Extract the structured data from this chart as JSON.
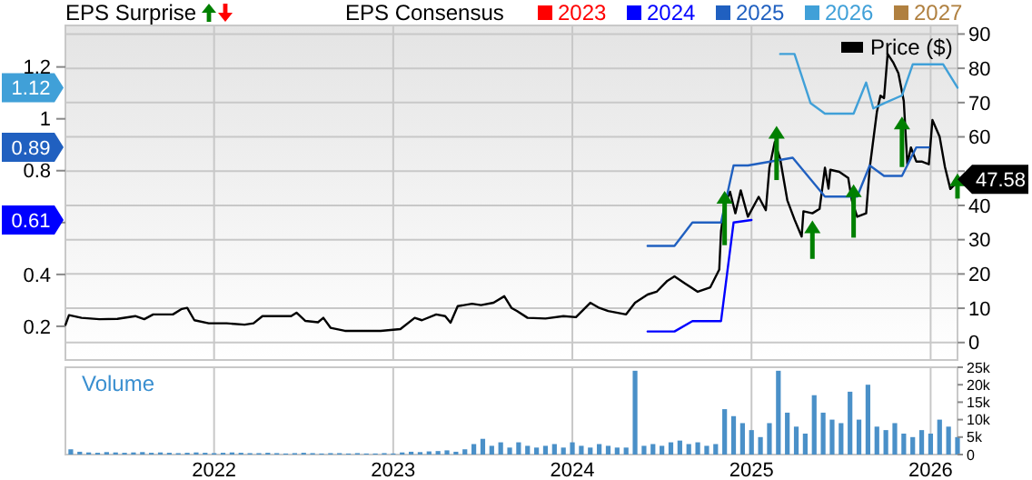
{
  "chart_data": [
    {
      "type": "line",
      "annotations": [
        "EPS Surprise"
      ],
      "legend_title": "EPS Consensus",
      "legend": "top",
      "grid": true,
      "tick_labels": "y",
      "xlim": [
        2021.17,
        2026.15
      ],
      "xticks": [
        2022,
        2023,
        2024,
        2025,
        2026
      ],
      "ylim": [
        0.07,
        1.36
      ],
      "yticks": [
        0.2,
        0.4,
        {
          "value": 0.6,
          "label": null
        },
        0.61,
        0.8,
        0.89,
        1,
        1.12,
        1.2
      ],
      "y2lim": [
        -5.1,
        92.5
      ],
      "y2ticks": [
        0,
        10,
        20,
        30,
        40,
        {
          "value": 50,
          "label": null
        },
        60,
        70,
        80,
        90
      ],
      "series": [
        {
          "name": "Price ($)",
          "type": "line",
          "axis": "y2",
          "color": "#000000",
          "x": [
            2021.17,
            2021.19,
            2021.26,
            2021.36,
            2021.46,
            2021.56,
            2021.61,
            2021.66,
            2021.77,
            2021.82,
            2021.85,
            2021.89,
            2021.97,
            2022.07,
            2022.17,
            2022.22,
            2022.27,
            2022.43,
            2022.46,
            2022.51,
            2022.58,
            2022.61,
            2022.65,
            2022.73,
            2022.93,
            2023.04,
            2023.12,
            2023.16,
            2023.24,
            2023.29,
            2023.32,
            2023.36,
            2023.44,
            2023.49,
            2023.56,
            2023.62,
            2023.66,
            2023.69,
            2023.75,
            2023.85,
            2023.95,
            2024.02,
            2024.1,
            2024.15,
            2024.2,
            2024.3,
            2024.35,
            2024.42,
            2024.47,
            2024.53,
            2024.57,
            2024.63,
            2024.7,
            2024.77,
            2024.82,
            2024.83,
            2024.85,
            2024.88,
            2024.91,
            2024.94,
            2024.98,
            2025.04,
            2025.08,
            2025.1,
            2025.13,
            2025.16,
            2025.2,
            2025.24,
            2025.28,
            2025.29,
            2025.34,
            2025.38,
            2025.41,
            2025.43,
            2025.44,
            2025.49,
            2025.54,
            2025.56,
            2025.59,
            2025.64,
            2025.66,
            2025.7,
            2025.72,
            2025.74,
            2025.76,
            2025.79,
            2025.82,
            2025.85,
            2025.87,
            2025.89,
            2025.92,
            2025.95,
            2025.99,
            2026.01,
            2026.05,
            2026.08,
            2026.11,
            2026.14,
            2026.15
          ],
          "values": [
            5.1,
            8,
            7.2,
            6.8,
            6.9,
            7.7,
            6.8,
            8.2,
            8.2,
            9.8,
            10.1,
            6.5,
            5.6,
            5.6,
            5.2,
            5.6,
            7.7,
            7.7,
            8.7,
            6.3,
            5.9,
            7.2,
            4.3,
            3.4,
            3.4,
            3.9,
            7.2,
            6.5,
            8.2,
            7.7,
            5.8,
            10.6,
            11.3,
            10.9,
            11.6,
            13.5,
            10.1,
            9.2,
            7.2,
            7,
            7.7,
            7.4,
            11.6,
            10.1,
            9.2,
            8.2,
            11.6,
            14,
            14.8,
            18,
            19.3,
            17.2,
            14.8,
            16.1,
            21.3,
            32.5,
            40,
            44,
            37.7,
            44.4,
            36.7,
            42.5,
            38.6,
            51,
            58.5,
            53.6,
            41.5,
            35.9,
            30.9,
            38.3,
            37.7,
            39,
            51,
            44.9,
            50.4,
            49.8,
            48,
            41.5,
            36.7,
            37.7,
            51,
            67.3,
            72,
            71.3,
            84.2,
            81.8,
            78.6,
            70.5,
            52,
            56.9,
            52.8,
            52.8,
            52,
            64.9,
            60.1,
            51.2,
            44.8,
            46.4,
            47.58
          ],
          "value_labels": [
            null,
            null,
            null,
            null,
            null,
            null,
            null,
            null,
            null,
            null,
            null,
            null,
            null,
            null,
            null,
            null,
            null,
            null,
            null,
            null,
            null,
            null,
            null,
            null,
            null,
            null,
            null,
            null,
            null,
            null,
            null,
            null,
            null,
            null,
            null,
            null,
            null,
            null,
            null,
            null,
            null,
            null,
            null,
            null,
            null,
            null,
            null,
            null,
            null,
            null,
            null,
            null,
            null,
            null,
            null,
            null,
            null,
            null,
            null,
            null,
            null,
            null,
            null,
            null,
            null,
            null,
            null,
            null,
            null,
            null,
            null,
            null,
            null,
            null,
            null,
            null,
            null,
            null,
            null,
            null,
            null,
            null,
            null,
            null,
            null,
            null,
            null,
            null,
            null,
            null,
            null,
            null,
            null,
            null,
            null,
            null,
            null,
            null,
            "47.58"
          ]
        },
        {
          "name": "2023",
          "type": "line",
          "color": "#ff0000"
        },
        {
          "name": "2024",
          "type": "line",
          "color": "#0000ff",
          "x": [
            2024.42,
            2024.57,
            2024.67,
            2024.83,
            2024.9,
            2025.0
          ],
          "values": [
            0.18,
            0.18,
            0.22,
            0.22,
            0.6,
            0.61
          ]
        },
        {
          "name": "2025",
          "type": "line",
          "color": "#2060c0",
          "x": [
            2024.42,
            2024.57,
            2024.67,
            2024.83,
            2024.9,
            2024.98,
            2025.23,
            2025.41,
            2025.59,
            2025.66,
            2025.74,
            2025.84,
            2025.92,
            2025.99
          ],
          "values": [
            0.51,
            0.51,
            0.6,
            0.6,
            0.82,
            0.82,
            0.85,
            0.7,
            0.7,
            0.82,
            0.78,
            0.78,
            0.89,
            0.89
          ]
        },
        {
          "name": "2026",
          "type": "line",
          "color": "#40a0d8",
          "x": [
            2025.16,
            2025.24,
            2025.33,
            2025.41,
            2025.57,
            2025.64,
            2025.68,
            2025.74,
            2025.84,
            2025.9,
            2026.07,
            2026.15
          ],
          "values": [
            1.25,
            1.25,
            1.06,
            1.02,
            1.02,
            1.14,
            1.04,
            1.06,
            1.09,
            1.21,
            1.21,
            1.12
          ]
        },
        {
          "name": "2027",
          "type": "line",
          "color": "#b08040"
        },
        {
          "type": "scatter",
          "axis": "y2",
          "marker": "triangle",
          "color": "#008000",
          "x": [
            2024.85,
            2025.14,
            2025.34,
            2025.57,
            2025.84,
            2026.15
          ],
          "values": [
            42.1,
            61.1,
            33.5,
            44,
            63.8,
            47.2
          ],
          "errors": [
            [
              28.4,
              42.1
            ],
            [
              47.4,
              61.1
            ],
            [
              24.4,
              33.5
            ],
            [
              30.6,
              44
            ],
            [
              51.2,
              63.8
            ],
            [
              42,
              47.2
            ]
          ]
        }
      ]
    },
    {
      "type": "bar",
      "title": "Volume",
      "color": "#4a90c8",
      "grid": "x",
      "xlim": [
        2021.17,
        2026.15
      ],
      "xticks": [
        2022,
        2023,
        2024,
        2025,
        2026
      ],
      "ylim": [
        0,
        25000
      ],
      "yticks": [
        {
          "value": 0,
          "label": "0"
        },
        {
          "value": 5000,
          "label": "5k"
        },
        {
          "value": 10000,
          "label": "10k"
        },
        {
          "value": 15000,
          "label": "15k"
        },
        {
          "value": 20000,
          "label": "20k"
        },
        {
          "value": 25000,
          "label": "25k"
        }
      ],
      "x": [
        2021.2,
        2021.25,
        2021.3,
        2021.35,
        2021.4,
        2021.45,
        2021.5,
        2021.55,
        2021.6,
        2021.65,
        2021.7,
        2021.75,
        2021.8,
        2021.85,
        2021.9,
        2021.95,
        2022,
        2022.05,
        2022.1,
        2022.15,
        2022.2,
        2022.25,
        2022.3,
        2022.35,
        2022.4,
        2022.45,
        2022.5,
        2022.55,
        2022.6,
        2022.65,
        2022.7,
        2022.75,
        2022.8,
        2022.85,
        2022.9,
        2022.95,
        2023,
        2023.05,
        2023.1,
        2023.15,
        2023.2,
        2023.25,
        2023.3,
        2023.35,
        2023.4,
        2023.45,
        2023.5,
        2023.55,
        2023.6,
        2023.65,
        2023.7,
        2023.75,
        2023.8,
        2023.85,
        2023.9,
        2023.95,
        2024,
        2024.05,
        2024.1,
        2024.15,
        2024.2,
        2024.25,
        2024.3,
        2024.35,
        2024.4,
        2024.45,
        2024.5,
        2024.55,
        2024.6,
        2024.65,
        2024.7,
        2024.75,
        2024.8,
        2024.85,
        2024.9,
        2024.95,
        2025,
        2025.05,
        2025.1,
        2025.15,
        2025.2,
        2025.25,
        2025.3,
        2025.35,
        2025.4,
        2025.45,
        2025.5,
        2025.55,
        2025.6,
        2025.65,
        2025.7,
        2025.75,
        2025.8,
        2025.85,
        2025.9,
        2025.95,
        2026,
        2026.05,
        2026.1,
        2026.15
      ],
      "values": [
        1500,
        800,
        600,
        500,
        700,
        600,
        500,
        600,
        700,
        500,
        600,
        500,
        400,
        500,
        600,
        500,
        400,
        500,
        600,
        500,
        400,
        400,
        500,
        400,
        300,
        400,
        500,
        400,
        300,
        400,
        400,
        300,
        400,
        300,
        300,
        400,
        300,
        600,
        800,
        700,
        900,
        1000,
        1200,
        800,
        1500,
        3000,
        4500,
        2500,
        3500,
        2000,
        3500,
        2500,
        2000,
        2500,
        3000,
        2000,
        3500,
        2500,
        2000,
        3000,
        2500,
        2000,
        2000,
        24000,
        2500,
        3000,
        2500,
        3500,
        4000,
        3000,
        3500,
        2500,
        3000,
        13000,
        11000,
        9000,
        7000,
        5000,
        9000,
        24000,
        12000,
        8000,
        6000,
        17000,
        12000,
        10000,
        9000,
        18000,
        10000,
        20000,
        8000,
        7000,
        9000,
        6000,
        5000,
        7000,
        6000,
        10000,
        8000,
        5000
      ]
    }
  ]
}
